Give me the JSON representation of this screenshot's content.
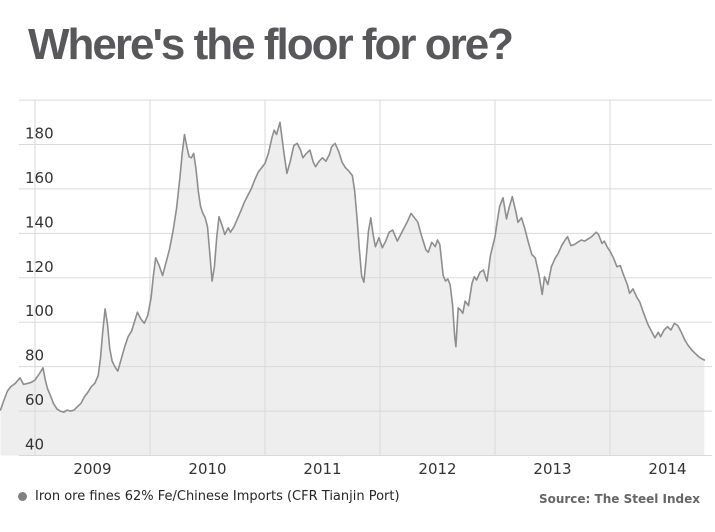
{
  "chart_data": {
    "type": "area",
    "title": "Where's the floor for ore?",
    "legend": "Iron ore fines 62% Fe/Chinese Imports (CFR Tianjin Port)",
    "source": "Source: The Steel Index",
    "xlabel": "",
    "ylabel": "",
    "x_tick_years": [
      2009,
      2010,
      2011,
      2012,
      2013,
      2014
    ],
    "y_tick_labels": [
      180,
      160,
      140,
      120,
      100,
      80,
      60,
      40
    ],
    "y_gridlines": [
      40,
      60,
      80,
      100,
      120,
      140,
      160,
      180,
      200
    ],
    "ylim": [
      40,
      200
    ],
    "xlim_decimal_years": [
      2008.696,
      2014.9
    ],
    "grid_on": true,
    "legend_position": "bottom-left",
    "colors": {
      "line": "#8e8e8e",
      "fill": "#eeeeee",
      "grid": "#d9d9d9",
      "axis_text": "#333333",
      "title_text": "#58585a",
      "legend_text": "#262626",
      "source_text": "#666666",
      "legend_bullet": "#7f7f7f",
      "background": "#ffffff"
    },
    "series": [
      {
        "name": "Iron ore fines 62% Fe/Chinese Imports (CFR Tianjin Port)",
        "x_unit": "decimal_year",
        "y_unit": "USD/dry metric tonne",
        "points": [
          [
            2008.7,
            60.5
          ],
          [
            2008.73,
            65
          ],
          [
            2008.76,
            69
          ],
          [
            2008.79,
            71
          ],
          [
            2008.83,
            72.5
          ],
          [
            2008.87,
            75
          ],
          [
            2008.9,
            72
          ],
          [
            2008.94,
            72.5
          ],
          [
            2008.97,
            73
          ],
          [
            2009.0,
            74
          ],
          [
            2009.04,
            77
          ],
          [
            2009.07,
            79.5
          ],
          [
            2009.09,
            74
          ],
          [
            2009.11,
            70
          ],
          [
            2009.13,
            67.5
          ],
          [
            2009.16,
            63.5
          ],
          [
            2009.19,
            61
          ],
          [
            2009.22,
            60
          ],
          [
            2009.25,
            59.5
          ],
          [
            2009.28,
            60.5
          ],
          [
            2009.31,
            60
          ],
          [
            2009.34,
            60.5
          ],
          [
            2009.37,
            62
          ],
          [
            2009.4,
            63.5
          ],
          [
            2009.43,
            66.5
          ],
          [
            2009.46,
            68.5
          ],
          [
            2009.49,
            71
          ],
          [
            2009.52,
            72.5
          ],
          [
            2009.55,
            76
          ],
          [
            2009.57,
            84
          ],
          [
            2009.59,
            96
          ],
          [
            2009.61,
            106
          ],
          [
            2009.63,
            99
          ],
          [
            2009.65,
            88
          ],
          [
            2009.67,
            82.5
          ],
          [
            2009.7,
            79.5
          ],
          [
            2009.72,
            78
          ],
          [
            2009.75,
            83.5
          ],
          [
            2009.78,
            89
          ],
          [
            2009.81,
            93.5
          ],
          [
            2009.84,
            96
          ],
          [
            2009.87,
            101
          ],
          [
            2009.89,
            104.5
          ],
          [
            2009.92,
            101.5
          ],
          [
            2009.95,
            99.5
          ],
          [
            2009.98,
            103
          ],
          [
            2010.01,
            111
          ],
          [
            2010.03,
            121
          ],
          [
            2010.05,
            129
          ],
          [
            2010.08,
            125.5
          ],
          [
            2010.11,
            121
          ],
          [
            2010.14,
            127
          ],
          [
            2010.17,
            133
          ],
          [
            2010.2,
            141
          ],
          [
            2010.23,
            151
          ],
          [
            2010.26,
            165
          ],
          [
            2010.28,
            176
          ],
          [
            2010.3,
            184.5
          ],
          [
            2010.32,
            179
          ],
          [
            2010.34,
            174.5
          ],
          [
            2010.36,
            174
          ],
          [
            2010.38,
            176
          ],
          [
            2010.4,
            169
          ],
          [
            2010.42,
            159
          ],
          [
            2010.44,
            152
          ],
          [
            2010.46,
            149
          ],
          [
            2010.48,
            147
          ],
          [
            2010.5,
            143
          ],
          [
            2010.52,
            131
          ],
          [
            2010.54,
            118.5
          ],
          [
            2010.56,
            125
          ],
          [
            2010.58,
            138
          ],
          [
            2010.6,
            147.5
          ],
          [
            2010.63,
            143
          ],
          [
            2010.65,
            139.5
          ],
          [
            2010.68,
            142.5
          ],
          [
            2010.7,
            140.5
          ],
          [
            2010.73,
            143
          ],
          [
            2010.76,
            146.5
          ],
          [
            2010.79,
            150
          ],
          [
            2010.82,
            154
          ],
          [
            2010.85,
            157
          ],
          [
            2010.88,
            160
          ],
          [
            2010.91,
            164
          ],
          [
            2010.94,
            167.5
          ],
          [
            2010.97,
            169.5
          ],
          [
            2011.0,
            171.5
          ],
          [
            2011.03,
            176
          ],
          [
            2011.06,
            183
          ],
          [
            2011.08,
            186.5
          ],
          [
            2011.1,
            184.5
          ],
          [
            2011.13,
            190
          ],
          [
            2011.16,
            178
          ],
          [
            2011.19,
            167
          ],
          [
            2011.22,
            172.5
          ],
          [
            2011.25,
            179.5
          ],
          [
            2011.28,
            180.5
          ],
          [
            2011.31,
            177.5
          ],
          [
            2011.33,
            174
          ],
          [
            2011.36,
            176
          ],
          [
            2011.39,
            177.5
          ],
          [
            2011.42,
            172
          ],
          [
            2011.44,
            170
          ],
          [
            2011.47,
            172.5
          ],
          [
            2011.5,
            174
          ],
          [
            2011.53,
            172.5
          ],
          [
            2011.56,
            175.5
          ],
          [
            2011.58,
            179
          ],
          [
            2011.61,
            180.5
          ],
          [
            2011.64,
            177
          ],
          [
            2011.67,
            172
          ],
          [
            2011.7,
            169.5
          ],
          [
            2011.73,
            168
          ],
          [
            2011.76,
            166
          ],
          [
            2011.78,
            159
          ],
          [
            2011.8,
            147
          ],
          [
            2011.82,
            133
          ],
          [
            2011.84,
            121
          ],
          [
            2011.86,
            118
          ],
          [
            2011.88,
            129
          ],
          [
            2011.9,
            141
          ],
          [
            2011.92,
            147
          ],
          [
            2011.94,
            139.5
          ],
          [
            2011.96,
            134
          ],
          [
            2011.99,
            138
          ],
          [
            2012.02,
            133.5
          ],
          [
            2012.05,
            136.5
          ],
          [
            2012.08,
            140.5
          ],
          [
            2012.11,
            141.5
          ],
          [
            2012.13,
            139
          ],
          [
            2012.15,
            136.5
          ],
          [
            2012.18,
            139.5
          ],
          [
            2012.21,
            142.5
          ],
          [
            2012.24,
            145.5
          ],
          [
            2012.27,
            149
          ],
          [
            2012.3,
            147
          ],
          [
            2012.33,
            145
          ],
          [
            2012.35,
            141
          ],
          [
            2012.37,
            137.5
          ],
          [
            2012.4,
            132.5
          ],
          [
            2012.42,
            131.5
          ],
          [
            2012.45,
            136
          ],
          [
            2012.48,
            134
          ],
          [
            2012.5,
            137
          ],
          [
            2012.52,
            135
          ],
          [
            2012.55,
            121
          ],
          [
            2012.57,
            118.5
          ],
          [
            2012.59,
            119.5
          ],
          [
            2012.61,
            117
          ],
          [
            2012.63,
            108
          ],
          [
            2012.65,
            93
          ],
          [
            2012.66,
            89
          ],
          [
            2012.68,
            106.5
          ],
          [
            2012.7,
            105.5
          ],
          [
            2012.72,
            104
          ],
          [
            2012.74,
            109.5
          ],
          [
            2012.77,
            107.5
          ],
          [
            2012.8,
            117.5
          ],
          [
            2012.82,
            120.5
          ],
          [
            2012.84,
            119
          ],
          [
            2012.87,
            122.5
          ],
          [
            2012.9,
            123.5
          ],
          [
            2012.92,
            120
          ],
          [
            2012.93,
            118.5
          ],
          [
            2012.96,
            130
          ],
          [
            2013.0,
            138.5
          ],
          [
            2013.02,
            145.5
          ],
          [
            2013.04,
            152
          ],
          [
            2013.07,
            156
          ],
          [
            2013.1,
            146.5
          ],
          [
            2013.12,
            151
          ],
          [
            2013.15,
            156.5
          ],
          [
            2013.18,
            150
          ],
          [
            2013.2,
            145
          ],
          [
            2013.23,
            147
          ],
          [
            2013.26,
            142
          ],
          [
            2013.29,
            136
          ],
          [
            2013.32,
            130.5
          ],
          [
            2013.35,
            129
          ],
          [
            2013.38,
            122
          ],
          [
            2013.41,
            112.5
          ],
          [
            2013.43,
            120.5
          ],
          [
            2013.46,
            117
          ],
          [
            2013.49,
            125
          ],
          [
            2013.52,
            128.5
          ],
          [
            2013.55,
            131
          ],
          [
            2013.58,
            134.5
          ],
          [
            2013.61,
            137
          ],
          [
            2013.63,
            138.5
          ],
          [
            2013.66,
            134.5
          ],
          [
            2013.69,
            135
          ],
          [
            2013.72,
            136
          ],
          [
            2013.75,
            137
          ],
          [
            2013.78,
            136.5
          ],
          [
            2013.81,
            137.5
          ],
          [
            2013.84,
            138.5
          ],
          [
            2013.88,
            140.5
          ],
          [
            2013.9,
            139.5
          ],
          [
            2013.93,
            135.5
          ],
          [
            2013.95,
            136.5
          ],
          [
            2013.98,
            133.5
          ],
          [
            2014.0,
            132
          ],
          [
            2014.03,
            129
          ],
          [
            2014.06,
            125
          ],
          [
            2014.09,
            125.5
          ],
          [
            2014.12,
            121
          ],
          [
            2014.15,
            117
          ],
          [
            2014.17,
            113
          ],
          [
            2014.2,
            115
          ],
          [
            2014.23,
            111.5
          ],
          [
            2014.26,
            109
          ],
          [
            2014.29,
            104.5
          ],
          [
            2014.33,
            99
          ],
          [
            2014.36,
            96
          ],
          [
            2014.39,
            93
          ],
          [
            2014.42,
            95.5
          ],
          [
            2014.44,
            93.5
          ],
          [
            2014.47,
            96.5
          ],
          [
            2014.5,
            98
          ],
          [
            2014.53,
            96.5
          ],
          [
            2014.56,
            99.5
          ],
          [
            2014.59,
            98.5
          ],
          [
            2014.62,
            95.5
          ],
          [
            2014.65,
            92
          ],
          [
            2014.68,
            89.5
          ],
          [
            2014.71,
            87.5
          ],
          [
            2014.74,
            86
          ],
          [
            2014.77,
            84.5
          ],
          [
            2014.8,
            83.5
          ],
          [
            2014.82,
            83
          ]
        ]
      }
    ]
  }
}
